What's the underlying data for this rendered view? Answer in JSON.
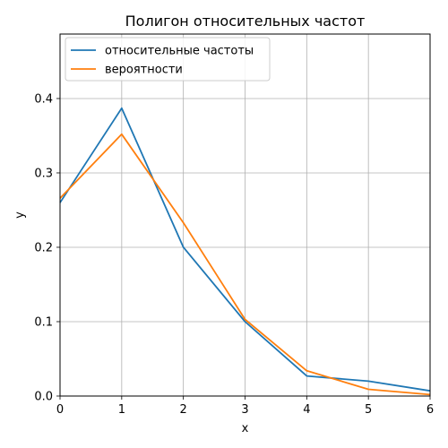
{
  "chart_data": {
    "type": "line",
    "title": "Полигон относительных частот",
    "xlabel": "x",
    "ylabel": "y",
    "xlim": [
      0,
      6
    ],
    "ylim": [
      0,
      0.4867
    ],
    "xticks": [
      "0",
      "1",
      "2",
      "3",
      "4",
      "5",
      "6"
    ],
    "yticks": [
      "0.0",
      "0.1",
      "0.2",
      "0.3",
      "0.4"
    ],
    "grid": true,
    "legend_position": "top-left",
    "series": [
      {
        "name": "относительные частоты",
        "color": "#1f77b4",
        "x": [
          0,
          1,
          2,
          3,
          4,
          5,
          6
        ],
        "y": [
          0.26,
          0.387,
          0.2,
          0.1,
          0.027,
          0.02,
          0.007
        ]
      },
      {
        "name": "вероятности",
        "color": "#ff7f0e",
        "x": [
          0,
          1,
          2,
          3,
          4,
          5,
          6
        ],
        "y": [
          0.266,
          0.352,
          0.233,
          0.103,
          0.034,
          0.009,
          0.002
        ]
      }
    ]
  }
}
